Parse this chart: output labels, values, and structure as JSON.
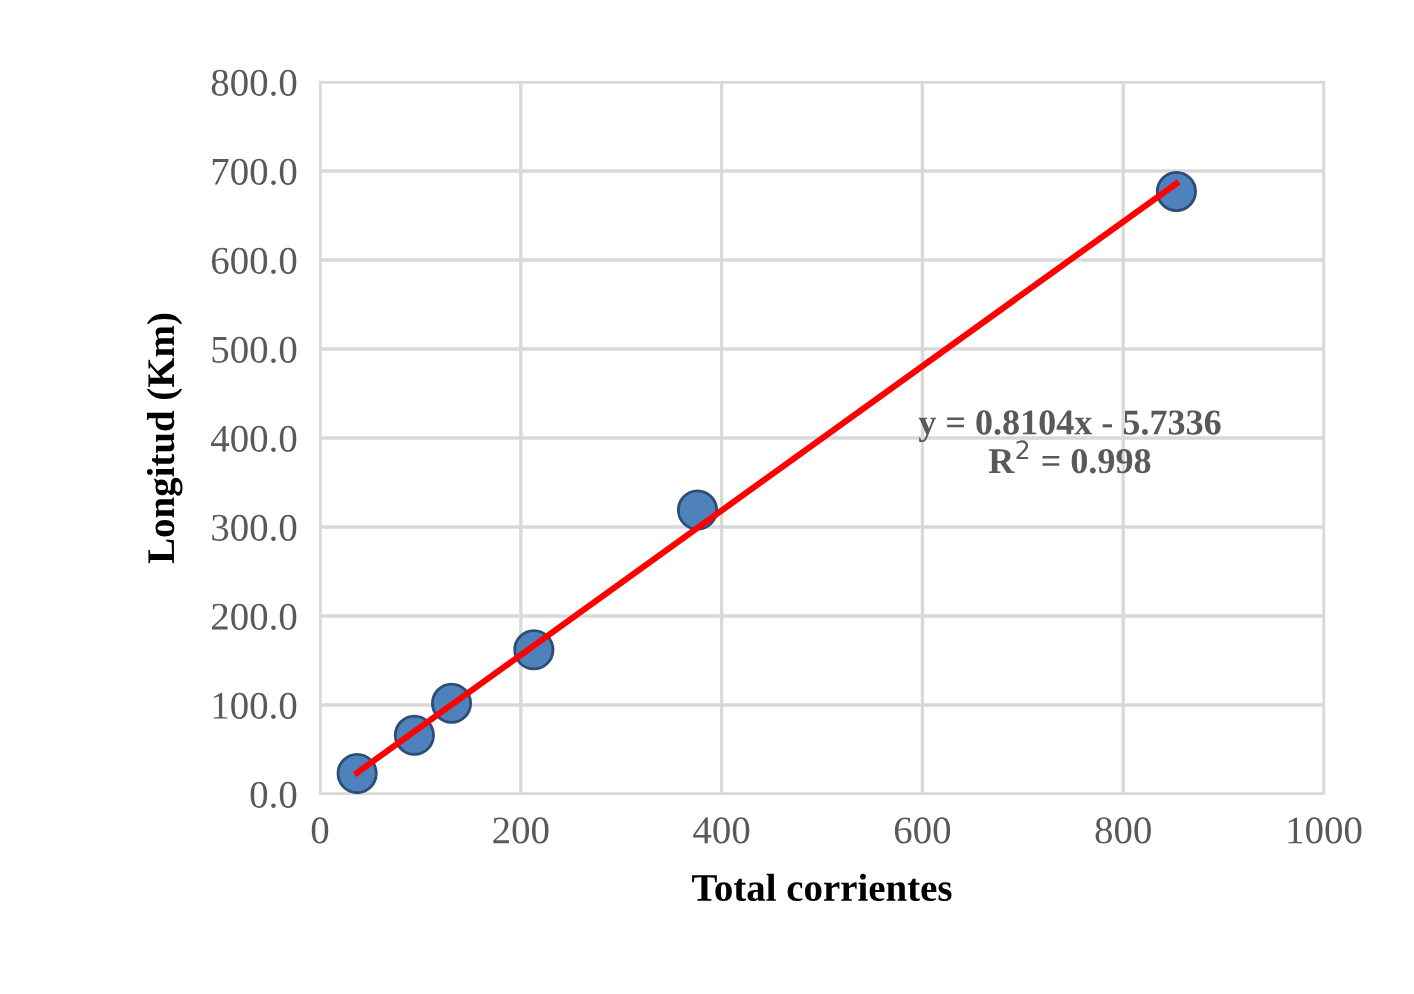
{
  "chart_data": {
    "type": "scatter",
    "xlabel": "Total corrientes",
    "ylabel": "Longitud (Km)",
    "series": [
      {
        "color": "#4f81bd",
        "x": [
          37,
          94,
          131,
          213,
          376,
          853
        ],
        "values": [
          23,
          66,
          102,
          162,
          319,
          677
        ]
      },
      {
        "type": "line",
        "color": "#ff0000",
        "x": [
          37,
          853
        ],
        "values": [
          24,
          686
        ],
        "marker": "none"
      }
    ],
    "marker": "circle",
    "annotations": [
      "y = 0.8104x - 5.7336\nR$^{2}$ = 0.998"
    ],
    "xlim": [
      0,
      1000
    ],
    "xticks": [
      0,
      200,
      400,
      600,
      800,
      1000
    ],
    "ylim": [
      0,
      800
    ],
    "yticks": [
      {
        "value": 0,
        "label": "0.0"
      },
      {
        "value": 100,
        "label": "100.0"
      },
      {
        "value": 200,
        "label": "200.0"
      },
      {
        "value": 300,
        "label": "300.0"
      },
      {
        "value": 400,
        "label": "400.0"
      },
      {
        "value": 500,
        "label": "500.0"
      },
      {
        "value": 600,
        "label": "600.0"
      },
      {
        "value": 700,
        "label": "700.0"
      },
      {
        "value": 800,
        "label": "800.0"
      }
    ],
    "grid": true,
    "legend": false
  }
}
